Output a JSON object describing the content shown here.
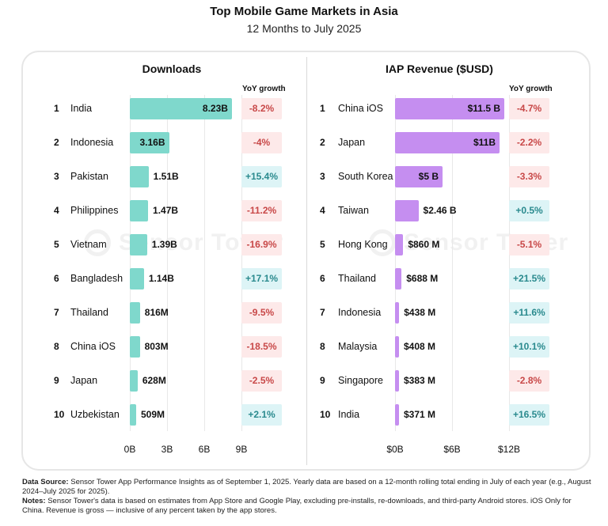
{
  "header": {
    "title": "Top Mobile Game Markets in Asia",
    "subtitle": "12 Months to July 2025"
  },
  "watermark": "Sensor Tower",
  "chart_data": [
    {
      "type": "bar",
      "title": "Downloads",
      "yoy_header": "YoY growth",
      "xlim": [
        0,
        9
      ],
      "ticks": [
        "0B",
        "3B",
        "6B",
        "9B"
      ],
      "tick_values": [
        0,
        3,
        6,
        9
      ],
      "rows": [
        {
          "rank": "1",
          "name": "India",
          "value": 8.23,
          "label": "8.23B",
          "yoy": "-8.2%"
        },
        {
          "rank": "2",
          "name": "Indonesia",
          "value": 3.16,
          "label": "3.16B",
          "yoy": "-4%"
        },
        {
          "rank": "3",
          "name": "Pakistan",
          "value": 1.51,
          "label": "1.51B",
          "yoy": "+15.4%"
        },
        {
          "rank": "4",
          "name": "Philippines",
          "value": 1.47,
          "label": "1.47B",
          "yoy": "-11.2%"
        },
        {
          "rank": "5",
          "name": "Vietnam",
          "value": 1.39,
          "label": "1.39B",
          "yoy": "-16.9%"
        },
        {
          "rank": "6",
          "name": "Bangladesh",
          "value": 1.14,
          "label": "1.14B",
          "yoy": "+17.1%"
        },
        {
          "rank": "7",
          "name": "Thailand",
          "value": 0.816,
          "label": "816M",
          "yoy": "-9.5%"
        },
        {
          "rank": "8",
          "name": "China iOS",
          "value": 0.803,
          "label": "803M",
          "yoy": "-18.5%"
        },
        {
          "rank": "9",
          "name": "Japan",
          "value": 0.628,
          "label": "628M",
          "yoy": "-2.5%"
        },
        {
          "rank": "10",
          "name": "Uzbekistan",
          "value": 0.509,
          "label": "509M",
          "yoy": "+2.1%"
        }
      ],
      "color": "#7fd8cc"
    },
    {
      "type": "bar",
      "title": "IAP Revenue ($USD)",
      "yoy_header": "YoY growth",
      "xlim": [
        0,
        12
      ],
      "ticks": [
        "$0B",
        "$6B",
        "$12B"
      ],
      "tick_values": [
        0,
        6,
        12
      ],
      "rows": [
        {
          "rank": "1",
          "name": "China iOS",
          "value": 11.5,
          "label": "$11.5 B",
          "yoy": "-4.7%"
        },
        {
          "rank": "2",
          "name": "Japan",
          "value": 11.0,
          "label": "$11B",
          "yoy": "-2.2%"
        },
        {
          "rank": "3",
          "name": "South Korea",
          "value": 5.0,
          "label": "$5 B",
          "yoy": "-3.3%"
        },
        {
          "rank": "4",
          "name": "Taiwan",
          "value": 2.46,
          "label": "$2.46 B",
          "yoy": "+0.5%"
        },
        {
          "rank": "5",
          "name": "Hong Kong",
          "value": 0.86,
          "label": "$860 M",
          "yoy": "-5.1%"
        },
        {
          "rank": "6",
          "name": "Thailand",
          "value": 0.688,
          "label": "$688 M",
          "yoy": "+21.5%"
        },
        {
          "rank": "7",
          "name": "Indonesia",
          "value": 0.438,
          "label": "$438 M",
          "yoy": "+11.6%"
        },
        {
          "rank": "8",
          "name": "Malaysia",
          "value": 0.408,
          "label": "$408 M",
          "yoy": "+10.1%"
        },
        {
          "rank": "9",
          "name": "Singapore",
          "value": 0.383,
          "label": "$383 M",
          "yoy": "-2.8%"
        },
        {
          "rank": "10",
          "name": "India",
          "value": 0.371,
          "label": "$371 M",
          "yoy": "+16.5%"
        }
      ],
      "color": "#c58ef0"
    }
  ],
  "footer": {
    "source_label": "Data Source:",
    "source_text": " Sensor Tower App Performance Insights as of September 1, 2025. Yearly data are based on a 12-month rolling total ending in July of each year (e.g., August 2024–July 2025 for 2025).",
    "notes_label": "Notes:",
    "notes_text": " Sensor Tower's data is based on estimates from App Store and Google Play, excluding pre-installs, re-downloads, and third-party Android stores. iOS Only for China.  Revenue is gross — inclusive of any percent taken by the app stores."
  }
}
